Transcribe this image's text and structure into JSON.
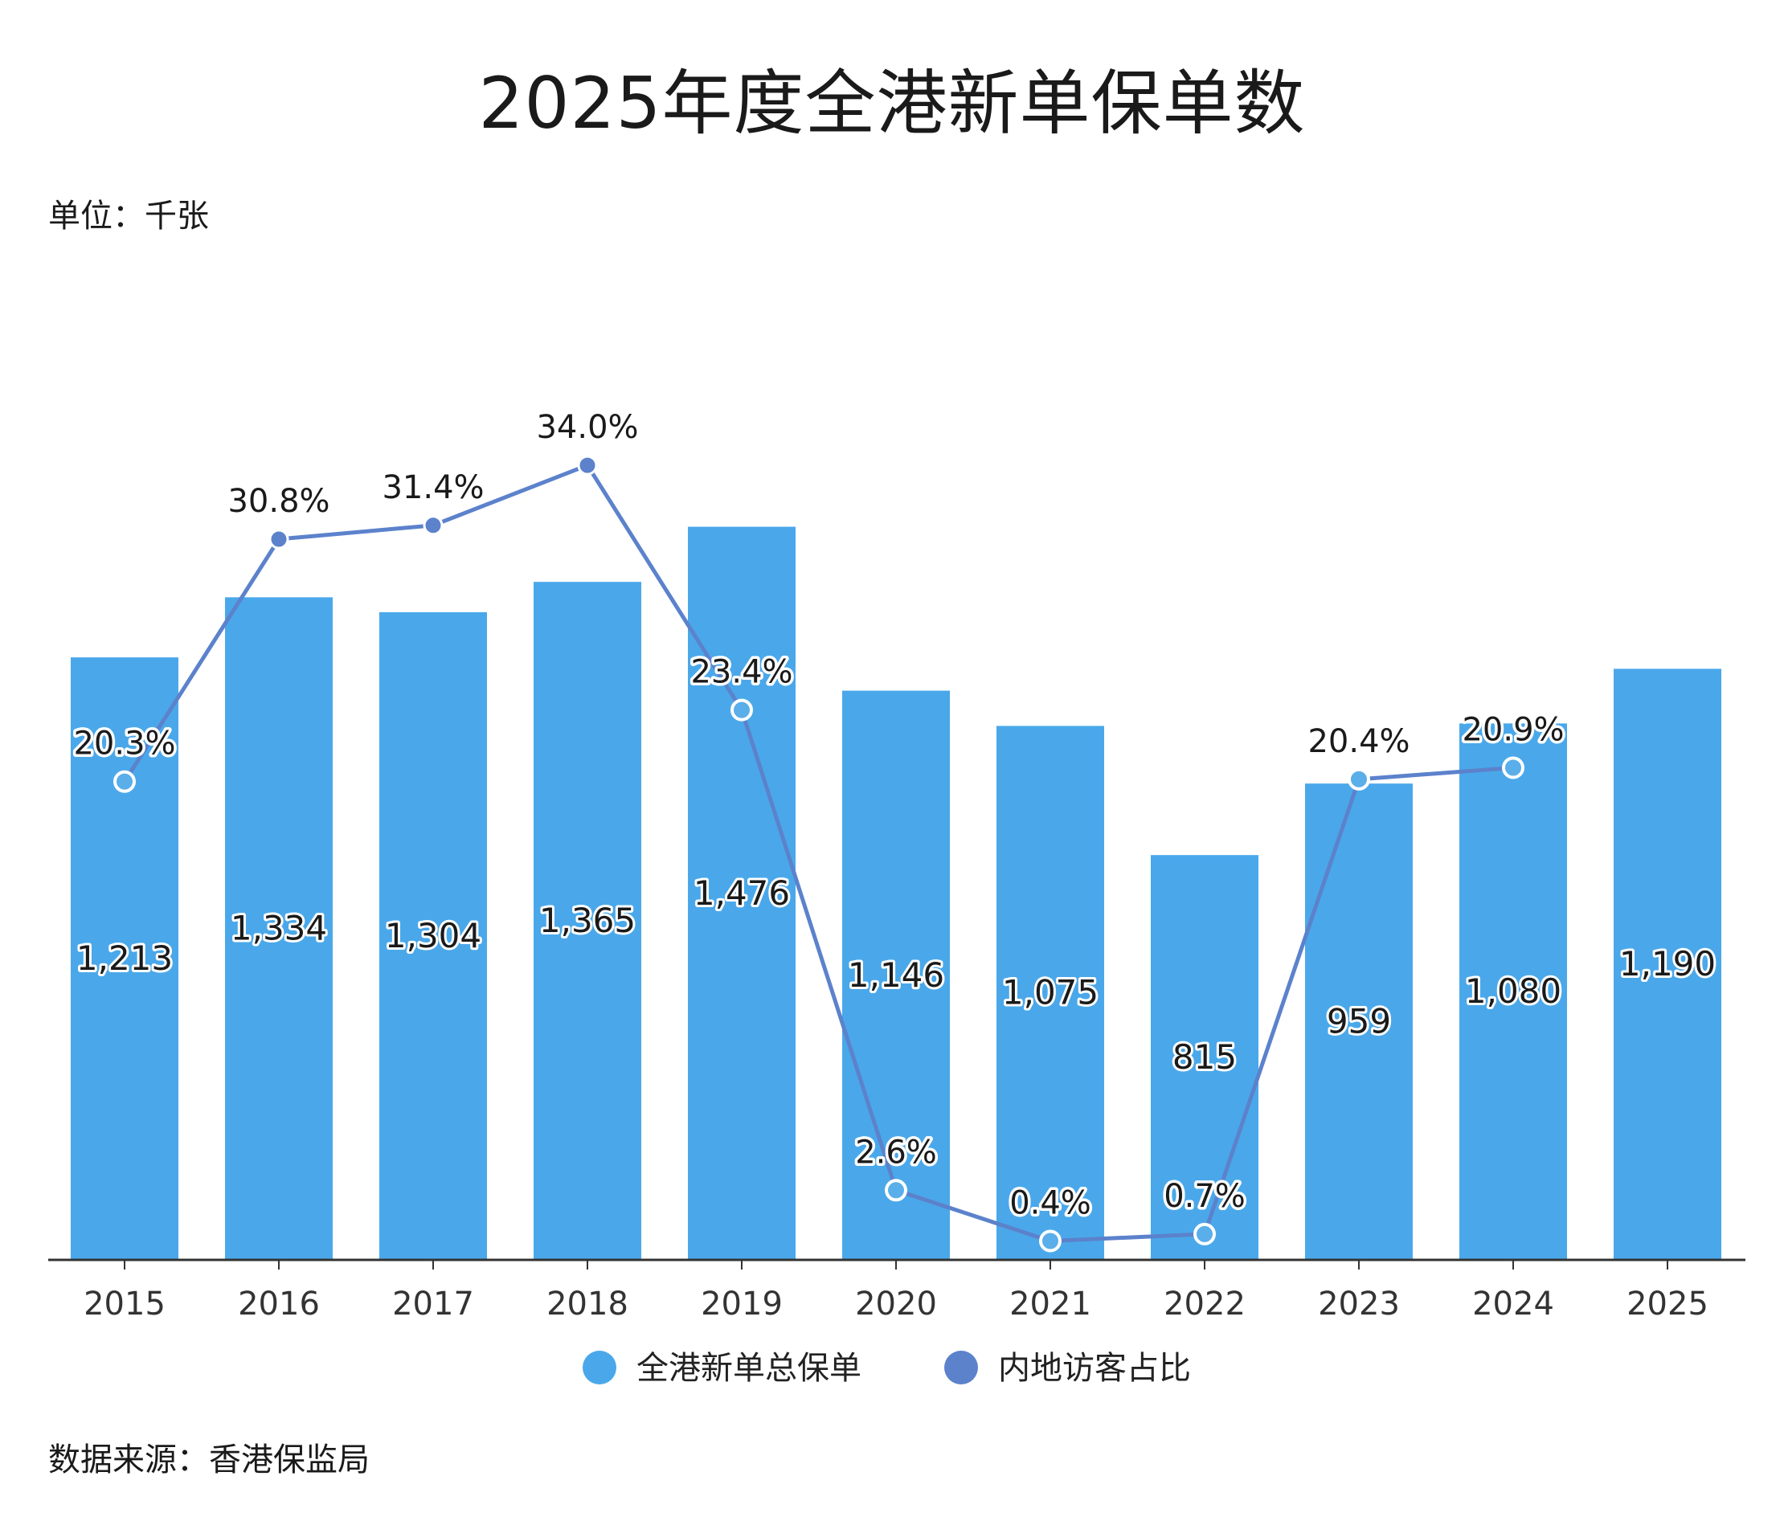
{
  "title": "2025年度全港新单保单数",
  "unit_label": "单位：千张",
  "source_label": "数据来源：香港保监局",
  "colors": {
    "bar": "#4aa8ea",
    "line": "#5c82cc",
    "marker_hollow_fill": "#5aaee9",
    "marker_solid": "#5c82cc"
  },
  "chart_data": {
    "type": "bar",
    "categories": [
      "2015",
      "2016",
      "2017",
      "2018",
      "2019",
      "2020",
      "2021",
      "2022",
      "2023",
      "2024",
      "2025"
    ],
    "ylim": [
      0,
      1650
    ],
    "series": [
      {
        "name": "全港新单总保单",
        "type": "bar",
        "values": [
          1213,
          1334,
          1304,
          1365,
          1476,
          1146,
          1075,
          815,
          959,
          1080,
          1190
        ],
        "labels": [
          "1,213",
          "1,334",
          "1,304",
          "1,365",
          "1,476",
          "1,146",
          "1,075",
          "815",
          "959",
          "1,080",
          "1,190"
        ]
      },
      {
        "name": "内地访客占比",
        "type": "line",
        "values": [
          20.3,
          30.8,
          31.4,
          34.0,
          23.4,
          2.6,
          0.4,
          0.7,
          20.4,
          20.9,
          null
        ],
        "labels": [
          "20.3%",
          "30.8%",
          "31.4%",
          "34.0%",
          "23.4%",
          "2.6%",
          "0.4%",
          "0.7%",
          "20.4%",
          "20.9%",
          ""
        ],
        "ylim": [
          0,
          35.5
        ]
      }
    ],
    "legend_position": "bottom",
    "grid": false
  }
}
